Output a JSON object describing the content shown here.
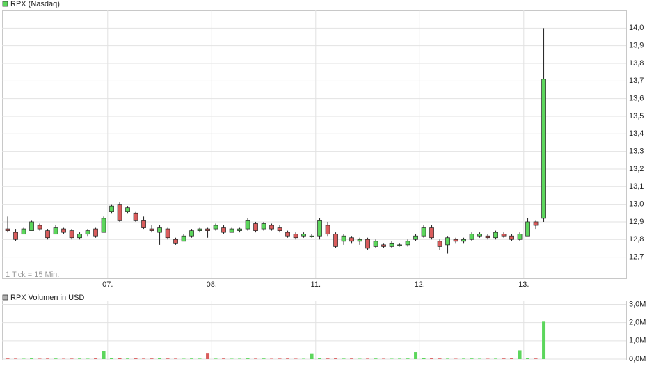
{
  "chart_data": [
    {
      "type": "candlestick",
      "note": "1 Tick = 15 Min.",
      "grid": true,
      "categories": [
        null,
        null,
        null,
        null,
        null,
        null,
        null,
        null,
        null,
        null,
        null,
        null,
        null,
        null,
        null,
        null,
        null,
        null,
        null,
        null,
        null,
        null,
        null,
        null,
        null,
        null,
        null,
        null,
        null,
        null,
        null,
        null,
        null,
        null,
        null,
        null,
        null,
        null,
        null,
        null,
        null,
        null,
        null,
        null,
        null,
        null,
        null,
        null,
        null,
        null,
        null,
        null,
        null,
        null,
        null,
        null,
        null,
        null,
        null,
        null,
        null,
        null,
        null,
        null,
        null,
        null,
        null,
        null
      ],
      "xlim": [
        -0.7,
        77.3
      ],
      "xticks": [
        {
          "value": 12.5,
          "label": "07."
        },
        {
          "value": 25.5,
          "label": "08."
        },
        {
          "value": 38.5,
          "label": "11."
        },
        {
          "value": 51.5,
          "label": "12."
        },
        {
          "value": 64.5,
          "label": "13."
        }
      ],
      "ylim": [
        12.58,
        14.1
      ],
      "yticks": [
        {
          "value": 12.7,
          "label": "12,7"
        },
        {
          "value": 12.8,
          "label": "12,8"
        },
        {
          "value": 12.9,
          "label": "12,9"
        },
        {
          "value": 13.0,
          "label": "13,0"
        },
        {
          "value": 13.1,
          "label": "13,1"
        },
        {
          "value": 13.2,
          "label": "13,2"
        },
        {
          "value": 13.3,
          "label": "13,3"
        },
        {
          "value": 13.4,
          "label": "13,4"
        },
        {
          "value": 13.5,
          "label": "13,5"
        },
        {
          "value": 13.6,
          "label": "13,6"
        },
        {
          "value": 13.7,
          "label": "13,7"
        },
        {
          "value": 13.8,
          "label": "13,8"
        },
        {
          "value": 13.9,
          "label": "13,9"
        },
        {
          "value": 14.0,
          "label": "14,0"
        }
      ],
      "series": [
        {
          "name": "RPX (Nasdaq)",
          "color": "#5cd65c",
          "down_color": "#d95c5c",
          "open": [
            12.86,
            12.84,
            12.83,
            12.85,
            12.88,
            12.85,
            12.83,
            12.86,
            12.85,
            12.81,
            12.83,
            12.86,
            12.84,
            12.96,
            13.0,
            12.96,
            12.95,
            12.91,
            12.86,
            12.84,
            12.86,
            12.8,
            12.79,
            12.82,
            12.85,
            12.86,
            12.86,
            12.87,
            12.84,
            12.85,
            12.86,
            12.89,
            12.86,
            12.88,
            12.87,
            12.84,
            12.83,
            12.82,
            12.82,
            12.82,
            12.88,
            12.83,
            12.79,
            12.81,
            12.79,
            12.8,
            12.76,
            12.77,
            12.76,
            12.77,
            12.77,
            12.8,
            12.82,
            12.87,
            12.79,
            12.77,
            12.8,
            12.79,
            12.8,
            12.82,
            12.82,
            12.81,
            12.83,
            12.82,
            12.8,
            12.82,
            12.9,
            12.92
          ],
          "high": [
            12.93,
            12.86,
            12.87,
            12.91,
            12.89,
            12.86,
            12.88,
            12.87,
            12.86,
            12.84,
            12.86,
            12.87,
            12.93,
            13.0,
            13.01,
            12.99,
            12.96,
            12.93,
            12.88,
            12.88,
            12.87,
            12.81,
            12.83,
            12.86,
            12.87,
            12.87,
            12.89,
            12.88,
            12.87,
            12.87,
            12.92,
            12.9,
            12.9,
            12.89,
            12.88,
            12.85,
            12.84,
            12.84,
            12.83,
            12.92,
            12.9,
            12.84,
            12.83,
            12.82,
            12.81,
            12.81,
            12.8,
            12.78,
            12.79,
            12.78,
            12.8,
            12.83,
            12.88,
            12.88,
            12.8,
            12.82,
            12.81,
            12.81,
            12.84,
            12.84,
            12.83,
            12.85,
            12.84,
            12.83,
            12.84,
            12.92,
            12.91,
            14.0
          ],
          "low": [
            12.84,
            12.79,
            12.83,
            12.85,
            12.85,
            12.8,
            12.83,
            12.83,
            12.8,
            12.8,
            12.82,
            12.81,
            12.84,
            12.95,
            12.9,
            12.95,
            12.9,
            12.86,
            12.84,
            12.77,
            12.8,
            12.77,
            12.79,
            12.81,
            12.84,
            12.81,
            12.85,
            12.83,
            12.84,
            12.84,
            12.85,
            12.84,
            12.85,
            12.85,
            12.84,
            12.81,
            12.8,
            12.81,
            12.81,
            12.8,
            12.82,
            12.75,
            12.77,
            12.78,
            12.77,
            12.74,
            12.75,
            12.75,
            12.75,
            12.76,
            12.76,
            12.79,
            12.81,
            12.8,
            12.74,
            12.72,
            12.78,
            12.78,
            12.79,
            12.81,
            12.8,
            12.8,
            12.81,
            12.79,
            12.79,
            12.82,
            12.86,
            12.9
          ],
          "close": [
            12.85,
            12.8,
            12.86,
            12.9,
            12.86,
            12.81,
            12.87,
            12.84,
            12.81,
            12.83,
            12.85,
            12.82,
            12.92,
            12.99,
            12.91,
            12.98,
            12.91,
            12.87,
            12.85,
            12.87,
            12.81,
            12.78,
            12.82,
            12.85,
            12.86,
            12.85,
            12.88,
            12.84,
            12.86,
            12.86,
            12.91,
            12.85,
            12.89,
            12.86,
            12.85,
            12.82,
            12.81,
            12.83,
            12.82,
            12.91,
            12.83,
            12.76,
            12.82,
            12.79,
            12.8,
            12.75,
            12.79,
            12.76,
            12.78,
            12.77,
            12.79,
            12.82,
            12.87,
            12.81,
            12.76,
            12.81,
            12.79,
            12.8,
            12.83,
            12.83,
            12.81,
            12.84,
            12.82,
            12.8,
            12.83,
            12.9,
            12.88,
            13.71
          ]
        }
      ]
    },
    {
      "type": "volume",
      "ylim": [
        0,
        3190000
      ],
      "yticks": [
        {
          "value": 0,
          "label": "0,0M"
        },
        {
          "value": 1000000,
          "label": "1,0M"
        },
        {
          "value": 2000000,
          "label": "2,0M"
        },
        {
          "value": 3000000,
          "label": "3,0M"
        }
      ],
      "series": [
        {
          "name": "RPX Volumen in USD",
          "color": "#b0b0b0",
          "values": [
            30000,
            25000,
            20000,
            35000,
            22000,
            28000,
            30000,
            20000,
            25000,
            30000,
            22000,
            35000,
            420000,
            60000,
            40000,
            30000,
            35000,
            25000,
            30000,
            40000,
            30000,
            25000,
            20000,
            30000,
            25000,
            300000,
            25000,
            30000,
            20000,
            22000,
            35000,
            25000,
            30000,
            20000,
            25000,
            30000,
            22000,
            20000,
            280000,
            40000,
            30000,
            35000,
            25000,
            30000,
            20000,
            25000,
            30000,
            22000,
            20000,
            25000,
            30000,
            380000,
            40000,
            35000,
            30000,
            25000,
            20000,
            25000,
            30000,
            22000,
            20000,
            25000,
            30000,
            35000,
            480000,
            40000,
            30000,
            2050000
          ]
        }
      ]
    }
  ]
}
